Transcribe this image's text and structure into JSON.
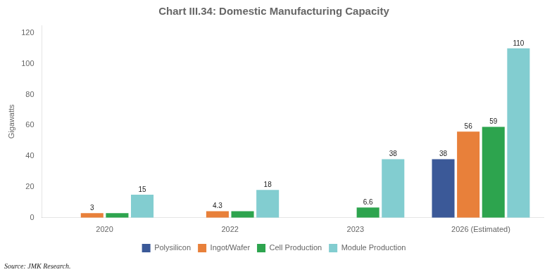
{
  "chart_data": {
    "type": "bar",
    "title": "Chart III.34: Domestic Manufacturing Capacity",
    "y_label": "Gigawatts",
    "annotations": [
      "Source: JMK Research."
    ],
    "categories": [
      "2020",
      "2022",
      "2023",
      "2026 (Estimated)"
    ],
    "series": [
      {
        "name": "Polysilicon",
        "color": "#3b5998",
        "values": [
          0,
          0,
          0,
          38
        ],
        "value_labels": [
          null,
          null,
          null,
          "38"
        ]
      },
      {
        "name": "Ingot/Wafer",
        "color": "#e8803a",
        "values": [
          3,
          4.3,
          0,
          56
        ],
        "value_labels": [
          "3",
          "4.3",
          null,
          "56"
        ]
      },
      {
        "name": "Cell Production",
        "color": "#2da44e",
        "values": [
          3,
          4.3,
          6.6,
          59
        ],
        "value_labels": [
          null,
          null,
          "6.6",
          "59"
        ]
      },
      {
        "name": "Module Production",
        "color": "#82cdd0",
        "values": [
          15,
          18,
          38,
          110
        ],
        "value_labels": [
          "15",
          "18",
          "38",
          "110"
        ]
      }
    ],
    "ylim": [
      0,
      125
    ],
    "yticks": [
      0,
      20,
      40,
      60,
      80,
      100,
      120
    ],
    "grid": false,
    "legend": "bottom",
    "data_labels": true
  }
}
